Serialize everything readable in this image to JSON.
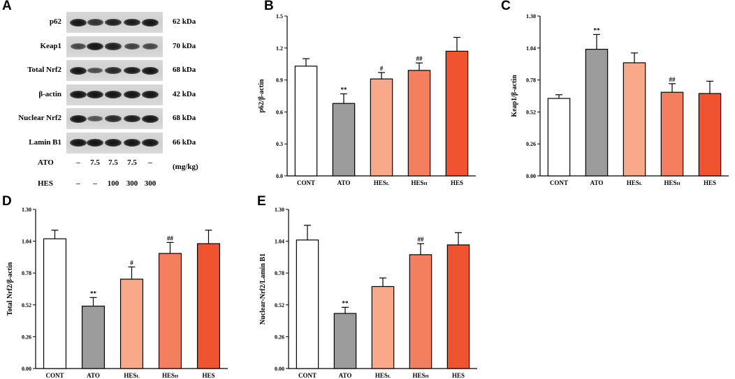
{
  "panel_letters": [
    "A",
    "B",
    "C",
    "D",
    "E"
  ],
  "blot": {
    "rows": [
      {
        "protein": "p62",
        "kda": "62 kDa",
        "intensity": [
          1.0,
          0.75,
          0.9,
          0.95,
          1.0
        ]
      },
      {
        "protein": "Keap1",
        "kda": "70 kDa",
        "intensity": [
          0.6,
          1.0,
          0.9,
          0.65,
          0.6
        ]
      },
      {
        "protein": "Total Nrf2",
        "kda": "68 kDa",
        "intensity": [
          1.0,
          0.55,
          0.85,
          0.95,
          1.0
        ]
      },
      {
        "protein": "β-actin",
        "kda": "42 kDa",
        "intensity": [
          1.0,
          1.0,
          1.0,
          1.0,
          1.0
        ]
      },
      {
        "protein": "Nuclear Nrf2",
        "kda": "68 kDa",
        "intensity": [
          1.0,
          0.5,
          0.85,
          0.95,
          1.0
        ]
      },
      {
        "protein": "Lamin B1",
        "kda": "66 kDa",
        "intensity": [
          1.0,
          1.0,
          1.0,
          1.0,
          1.0
        ]
      }
    ],
    "treatments": [
      {
        "label": "ATO",
        "values": [
          "–",
          "7.5",
          "7.5",
          "7.5",
          "–"
        ],
        "unit": "(mg/kg)"
      },
      {
        "label": "HES",
        "values": [
          "–",
          "–",
          "100",
          "300",
          "300"
        ],
        "unit": ""
      }
    ]
  },
  "chart_data": [
    {
      "id": "B",
      "type": "bar",
      "ylabel": "p62/β-actin",
      "categories": [
        "CONT",
        "ATO",
        "HESL",
        "HESH",
        "HES"
      ],
      "category_main": [
        "CONT",
        "ATO",
        "HES",
        "HES",
        "HES"
      ],
      "category_sub": [
        "",
        "",
        "L",
        "H",
        ""
      ],
      "values": [
        1.03,
        0.68,
        0.91,
        0.99,
        1.17
      ],
      "errors": [
        0.07,
        0.09,
        0.06,
        0.07,
        0.13
      ],
      "significance": [
        "",
        "**",
        "#",
        "##",
        ""
      ],
      "ylim": [
        0,
        1.5
      ],
      "yticks": [
        "0.0",
        "0.3",
        "0.6",
        "0.9",
        "1.2",
        "1.5"
      ]
    },
    {
      "id": "C",
      "type": "bar",
      "ylabel": "Keap1/β-actin",
      "categories": [
        "CONT",
        "ATO",
        "HESL",
        "HESH",
        "HES"
      ],
      "category_main": [
        "CONT",
        "ATO",
        "HES",
        "HES",
        "HES"
      ],
      "category_sub": [
        "",
        "",
        "L",
        "H",
        ""
      ],
      "values": [
        0.63,
        1.03,
        0.92,
        0.68,
        0.67
      ],
      "errors": [
        0.03,
        0.12,
        0.08,
        0.07,
        0.1
      ],
      "significance": [
        "",
        "**",
        "",
        "##",
        ""
      ],
      "ylim": [
        0,
        1.3
      ],
      "yticks": [
        "0.00",
        "0.26",
        "0.52",
        "0.78",
        "1.04",
        "1.30"
      ]
    },
    {
      "id": "D",
      "type": "bar",
      "ylabel": "Total Nrf2/β-actin",
      "categories": [
        "CONT",
        "ATO",
        "HESL",
        "HESH",
        "HES"
      ],
      "category_main": [
        "CONT",
        "ATO",
        "HES",
        "HES",
        "HES"
      ],
      "category_sub": [
        "",
        "",
        "L",
        "H",
        ""
      ],
      "values": [
        1.06,
        0.51,
        0.73,
        0.94,
        1.02
      ],
      "errors": [
        0.07,
        0.07,
        0.1,
        0.09,
        0.11
      ],
      "significance": [
        "",
        "**",
        "#",
        "##",
        ""
      ],
      "ylim": [
        0,
        1.3
      ],
      "yticks": [
        "0.00",
        "0.26",
        "0.52",
        "0.78",
        "1.04",
        "1.30"
      ]
    },
    {
      "id": "E",
      "type": "bar",
      "ylabel": "Nuclear-Nrf2/Lamin B1",
      "categories": [
        "CONT",
        "ATO",
        "HESL",
        "HESH",
        "HES"
      ],
      "category_main": [
        "CONT",
        "ATO",
        "HES",
        "HES",
        "HES"
      ],
      "category_sub": [
        "",
        "",
        "L",
        "H",
        ""
      ],
      "values": [
        1.05,
        0.45,
        0.67,
        0.93,
        1.01
      ],
      "errors": [
        0.12,
        0.05,
        0.07,
        0.09,
        0.1
      ],
      "significance": [
        "",
        "**",
        "",
        "##",
        ""
      ],
      "ylim": [
        0,
        1.3
      ],
      "yticks": [
        "0.00",
        "0.26",
        "0.52",
        "0.78",
        "1.04",
        "1.30"
      ]
    }
  ],
  "bar_colors": [
    "#ffffff",
    "#9b9b9b",
    "#f7a98a",
    "#f47f5e",
    "#ef5330"
  ]
}
